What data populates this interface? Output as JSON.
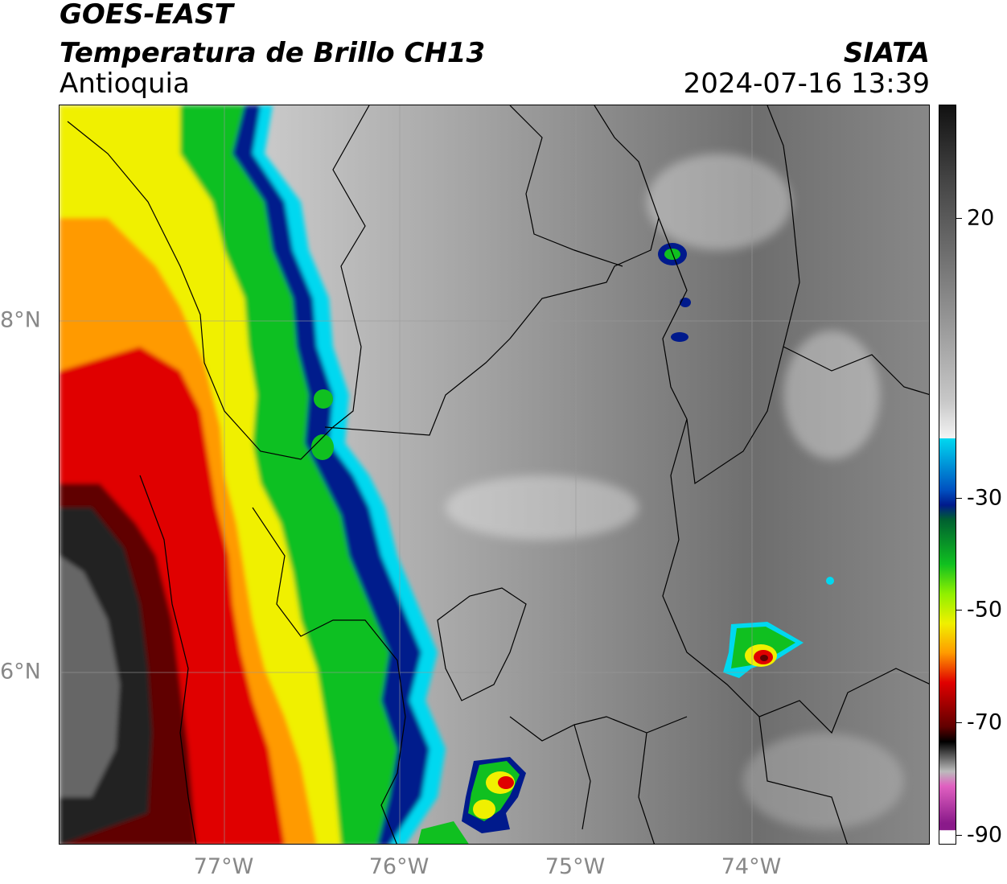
{
  "header": {
    "title_line1": "GOES-EAST",
    "title_line2": "Temperatura de Brillo CH13",
    "region": "Antioquia",
    "agency": "SIATA",
    "timestamp": "2024-07-16 13:39"
  },
  "map": {
    "x_ticks": [
      {
        "label": "77°W",
        "lon": -77
      },
      {
        "label": "76°W",
        "lon": -76
      },
      {
        "label": "75°W",
        "lon": -75
      },
      {
        "label": "74°W",
        "lon": -74
      }
    ],
    "y_ticks": [
      {
        "label": "8°N",
        "lat": 8
      },
      {
        "label": "6°N",
        "lat": 6
      }
    ],
    "lon_range": [
      -77.95,
      -73.0
    ],
    "lat_range": [
      5.05,
      9.25
    ],
    "gridlines": true
  },
  "colorbar": {
    "range": [
      -90,
      30
    ],
    "ticks": [
      {
        "label": "20",
        "value": 20
      },
      {
        "label": "-30",
        "value": -30
      },
      {
        "label": "-50",
        "value": -50
      },
      {
        "label": "-70",
        "value": -70
      },
      {
        "label": "-90",
        "value": -90
      }
    ],
    "colors": {
      "warm": "#1a1a1a",
      "mid": "#f2f2f2",
      "cyan": "#00d8f0",
      "navy": "#001a8c",
      "green": "#10c020",
      "yellow": "#f0f000",
      "orange": "#ff9a00",
      "red": "#e00000",
      "darkred": "#600000",
      "black": "#000000",
      "pink": "#e060c0",
      "purple": "#8a1a8a"
    }
  }
}
